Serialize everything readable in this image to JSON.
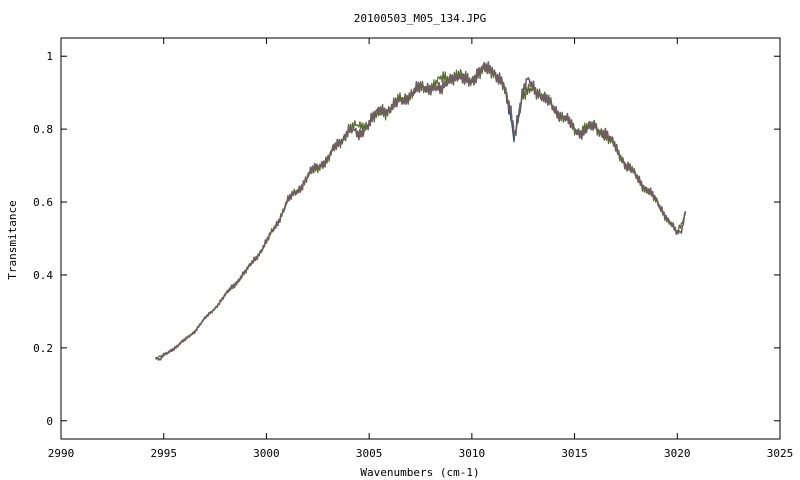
{
  "chart_data": {
    "type": "line",
    "title": "20100503_M05_134.JPG",
    "xlabel": "Wavenumbers (cm-1)",
    "ylabel": "Transmitance",
    "xlim": [
      2990,
      3025
    ],
    "ylim": [
      -0.05,
      1.05
    ],
    "xticks": [
      2990,
      2995,
      3000,
      3005,
      3010,
      3015,
      3020,
      3025
    ],
    "xtick_labels": [
      "2990",
      "2995",
      "3000",
      "3005",
      "3010",
      "3015",
      "3020",
      "3025"
    ],
    "yticks": [
      0,
      0.2,
      0.4,
      0.6,
      0.8,
      1.0
    ],
    "ytick_labels": [
      "0",
      "0.2",
      "0.4",
      "0.6",
      "0.8",
      "1"
    ],
    "grid": false,
    "legend": "none",
    "series": [
      {
        "color": "#6e5d61",
        "x": [
          2994.6,
          2994.8,
          2995.0,
          2995.5,
          2996.0,
          2996.5,
          2997.0,
          2997.5,
          2998.0,
          2998.5,
          2999.0,
          2999.5,
          3000.0,
          3000.5,
          3001.0,
          3001.5,
          3002.0,
          3002.5,
          3003.0,
          3003.5,
          3004.0,
          3004.5,
          3005.0,
          3005.5,
          3006.0,
          3006.5,
          3007.0,
          3007.5,
          3008.0,
          3008.5,
          3009.0,
          3009.5,
          3010.0,
          3010.5,
          3011.0,
          3011.5,
          3011.9,
          3012.1,
          3012.4,
          3012.7,
          3013.0,
          3013.5,
          3014.0,
          3014.5,
          3015.0,
          3015.5,
          3016.0,
          3016.5,
          3017.0,
          3017.5,
          3018.0,
          3018.5,
          3019.0,
          3019.5,
          3019.8,
          3020.0,
          3020.2,
          3020.4
        ],
        "y": [
          0.175,
          0.165,
          0.18,
          0.2,
          0.22,
          0.245,
          0.28,
          0.31,
          0.345,
          0.38,
          0.41,
          0.45,
          0.49,
          0.54,
          0.6,
          0.63,
          0.67,
          0.7,
          0.72,
          0.76,
          0.8,
          0.78,
          0.82,
          0.85,
          0.86,
          0.87,
          0.9,
          0.91,
          0.92,
          0.9,
          0.95,
          0.93,
          0.94,
          0.96,
          0.97,
          0.92,
          0.85,
          0.79,
          0.88,
          0.93,
          0.92,
          0.88,
          0.86,
          0.83,
          0.8,
          0.79,
          0.81,
          0.79,
          0.75,
          0.7,
          0.67,
          0.64,
          0.6,
          0.56,
          0.53,
          0.51,
          0.52,
          0.575
        ]
      },
      {
        "color": "#556b2f",
        "x": [
          2994.6,
          2995.0,
          2996.0,
          2997.0,
          2998.0,
          2999.0,
          3000.0,
          3001.0,
          3002.0,
          3003.0,
          3004.0,
          3005.0,
          3006.0,
          3007.0,
          3008.0,
          3009.0,
          3010.0,
          3011.0,
          3011.5,
          3011.9,
          3012.1,
          3012.4,
          3013.0,
          3014.0,
          3015.0,
          3016.0,
          3017.0,
          3018.0,
          3019.0,
          3020.0,
          3020.4
        ],
        "y": [
          0.172,
          0.178,
          0.218,
          0.278,
          0.343,
          0.408,
          0.488,
          0.598,
          0.668,
          0.718,
          0.798,
          0.818,
          0.858,
          0.898,
          0.918,
          0.948,
          0.938,
          0.968,
          0.918,
          0.84,
          0.785,
          0.875,
          0.918,
          0.858,
          0.798,
          0.808,
          0.748,
          0.668,
          0.598,
          0.512,
          0.57
        ]
      },
      {
        "color": "#1f3f8f",
        "x": [
          3011.6,
          3011.9,
          3012.05,
          3012.2,
          3012.4
        ],
        "y": [
          0.9,
          0.83,
          0.78,
          0.83,
          0.87
        ]
      }
    ]
  }
}
